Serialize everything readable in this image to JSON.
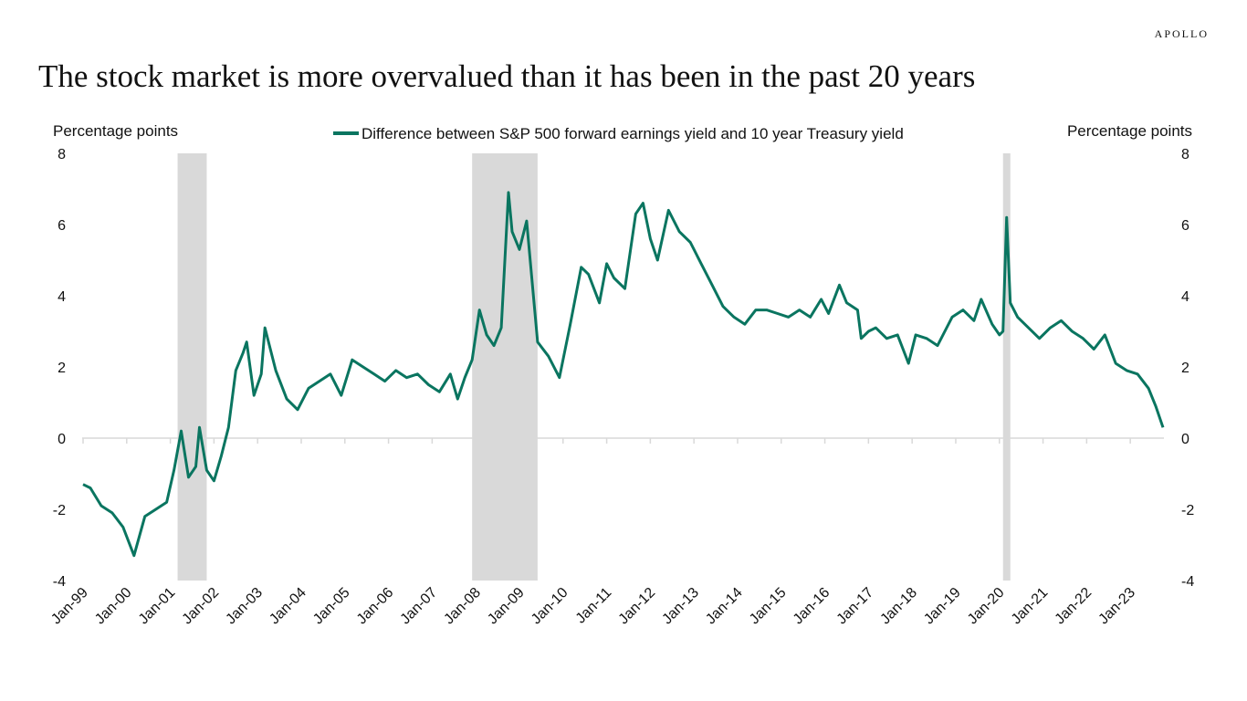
{
  "brand": "APOLLO",
  "colors": {
    "series": "#0a7560",
    "recession": "#d9d9d9",
    "axis": "#d9d9d9"
  },
  "chart_data": {
    "type": "line",
    "title": "The stock market is more overvalued than it has been in the past 20 years",
    "ylabel_left": "Percentage points",
    "ylabel_right": "Percentage points",
    "ylim": [
      -4,
      8
    ],
    "yticks": [
      -4,
      -2,
      0,
      2,
      4,
      6,
      8
    ],
    "xlim": [
      "1999-01",
      "2023-10"
    ],
    "xticks": [
      "Jan-99",
      "Jan-00",
      "Jan-01",
      "Jan-02",
      "Jan-03",
      "Jan-04",
      "Jan-05",
      "Jan-06",
      "Jan-07",
      "Jan-08",
      "Jan-09",
      "Jan-10",
      "Jan-11",
      "Jan-12",
      "Jan-13",
      "Jan-14",
      "Jan-15",
      "Jan-16",
      "Jan-17",
      "Jan-18",
      "Jan-19",
      "Jan-20",
      "Jan-21",
      "Jan-22",
      "Jan-23"
    ],
    "legend": "top-center",
    "grid": false,
    "recessions": [
      {
        "start": "2001-03",
        "end": "2001-11"
      },
      {
        "start": "2007-12",
        "end": "2009-06"
      },
      {
        "start": "2020-02",
        "end": "2020-04"
      }
    ],
    "series": [
      {
        "name": "Difference between S&P 500 forward earnings yield and 10 year Treasury yield",
        "x": [
          "1999-01",
          "1999-03",
          "1999-06",
          "1999-09",
          "1999-12",
          "2000-03",
          "2000-06",
          "2000-09",
          "2000-12",
          "2001-02",
          "2001-04",
          "2001-06",
          "2001-08",
          "2001-09",
          "2001-11",
          "2002-01",
          "2002-03",
          "2002-05",
          "2002-07",
          "2002-09",
          "2002-10",
          "2002-12",
          "2003-02",
          "2003-03",
          "2003-06",
          "2003-09",
          "2003-12",
          "2004-03",
          "2004-06",
          "2004-09",
          "2004-12",
          "2005-03",
          "2005-06",
          "2005-09",
          "2005-12",
          "2006-03",
          "2006-06",
          "2006-09",
          "2006-12",
          "2007-03",
          "2007-06",
          "2007-08",
          "2007-10",
          "2007-12",
          "2008-02",
          "2008-04",
          "2008-06",
          "2008-08",
          "2008-10",
          "2008-11",
          "2009-01",
          "2009-03",
          "2009-06",
          "2009-09",
          "2009-12",
          "2010-03",
          "2010-06",
          "2010-08",
          "2010-11",
          "2011-01",
          "2011-03",
          "2011-06",
          "2011-09",
          "2011-11",
          "2012-01",
          "2012-03",
          "2012-06",
          "2012-09",
          "2012-12",
          "2013-03",
          "2013-06",
          "2013-09",
          "2013-12",
          "2014-03",
          "2014-06",
          "2014-09",
          "2014-12",
          "2015-03",
          "2015-06",
          "2015-09",
          "2015-12",
          "2016-02",
          "2016-05",
          "2016-07",
          "2016-10",
          "2016-11",
          "2017-01",
          "2017-03",
          "2017-06",
          "2017-09",
          "2017-12",
          "2018-02",
          "2018-05",
          "2018-08",
          "2018-10",
          "2018-12",
          "2019-03",
          "2019-06",
          "2019-08",
          "2019-11",
          "2020-01",
          "2020-02",
          "2020-03",
          "2020-04",
          "2020-06",
          "2020-09",
          "2020-12",
          "2021-03",
          "2021-06",
          "2021-09",
          "2021-12",
          "2022-03",
          "2022-06",
          "2022-09",
          "2022-12",
          "2023-03",
          "2023-06",
          "2023-08",
          "2023-10"
        ],
        "values": [
          -1.3,
          -1.4,
          -1.9,
          -2.1,
          -2.5,
          -3.3,
          -2.2,
          -2.0,
          -1.8,
          -0.9,
          0.2,
          -1.1,
          -0.8,
          0.3,
          -0.9,
          -1.2,
          -0.5,
          0.3,
          1.9,
          2.4,
          2.7,
          1.2,
          1.8,
          3.1,
          1.9,
          1.1,
          0.8,
          1.4,
          1.6,
          1.8,
          1.2,
          2.2,
          2.0,
          1.8,
          1.6,
          1.9,
          1.7,
          1.8,
          1.5,
          1.3,
          1.8,
          1.1,
          1.7,
          2.2,
          3.6,
          2.9,
          2.6,
          3.1,
          6.9,
          5.8,
          5.3,
          6.1,
          2.7,
          2.3,
          1.7,
          3.2,
          4.8,
          4.6,
          3.8,
          4.9,
          4.5,
          4.2,
          6.3,
          6.6,
          5.6,
          5.0,
          6.4,
          5.8,
          5.5,
          4.9,
          4.3,
          3.7,
          3.4,
          3.2,
          3.6,
          3.6,
          3.5,
          3.4,
          3.6,
          3.4,
          3.9,
          3.5,
          4.3,
          3.8,
          3.6,
          2.8,
          3.0,
          3.1,
          2.8,
          2.9,
          2.1,
          2.9,
          2.8,
          2.6,
          3.0,
          3.4,
          3.6,
          3.3,
          3.9,
          3.2,
          2.9,
          3.0,
          6.2,
          3.8,
          3.4,
          3.1,
          2.8,
          3.1,
          3.3,
          3.0,
          2.8,
          2.5,
          2.9,
          2.1,
          1.9,
          1.8,
          1.4,
          0.9,
          0.3
        ]
      }
    ]
  }
}
